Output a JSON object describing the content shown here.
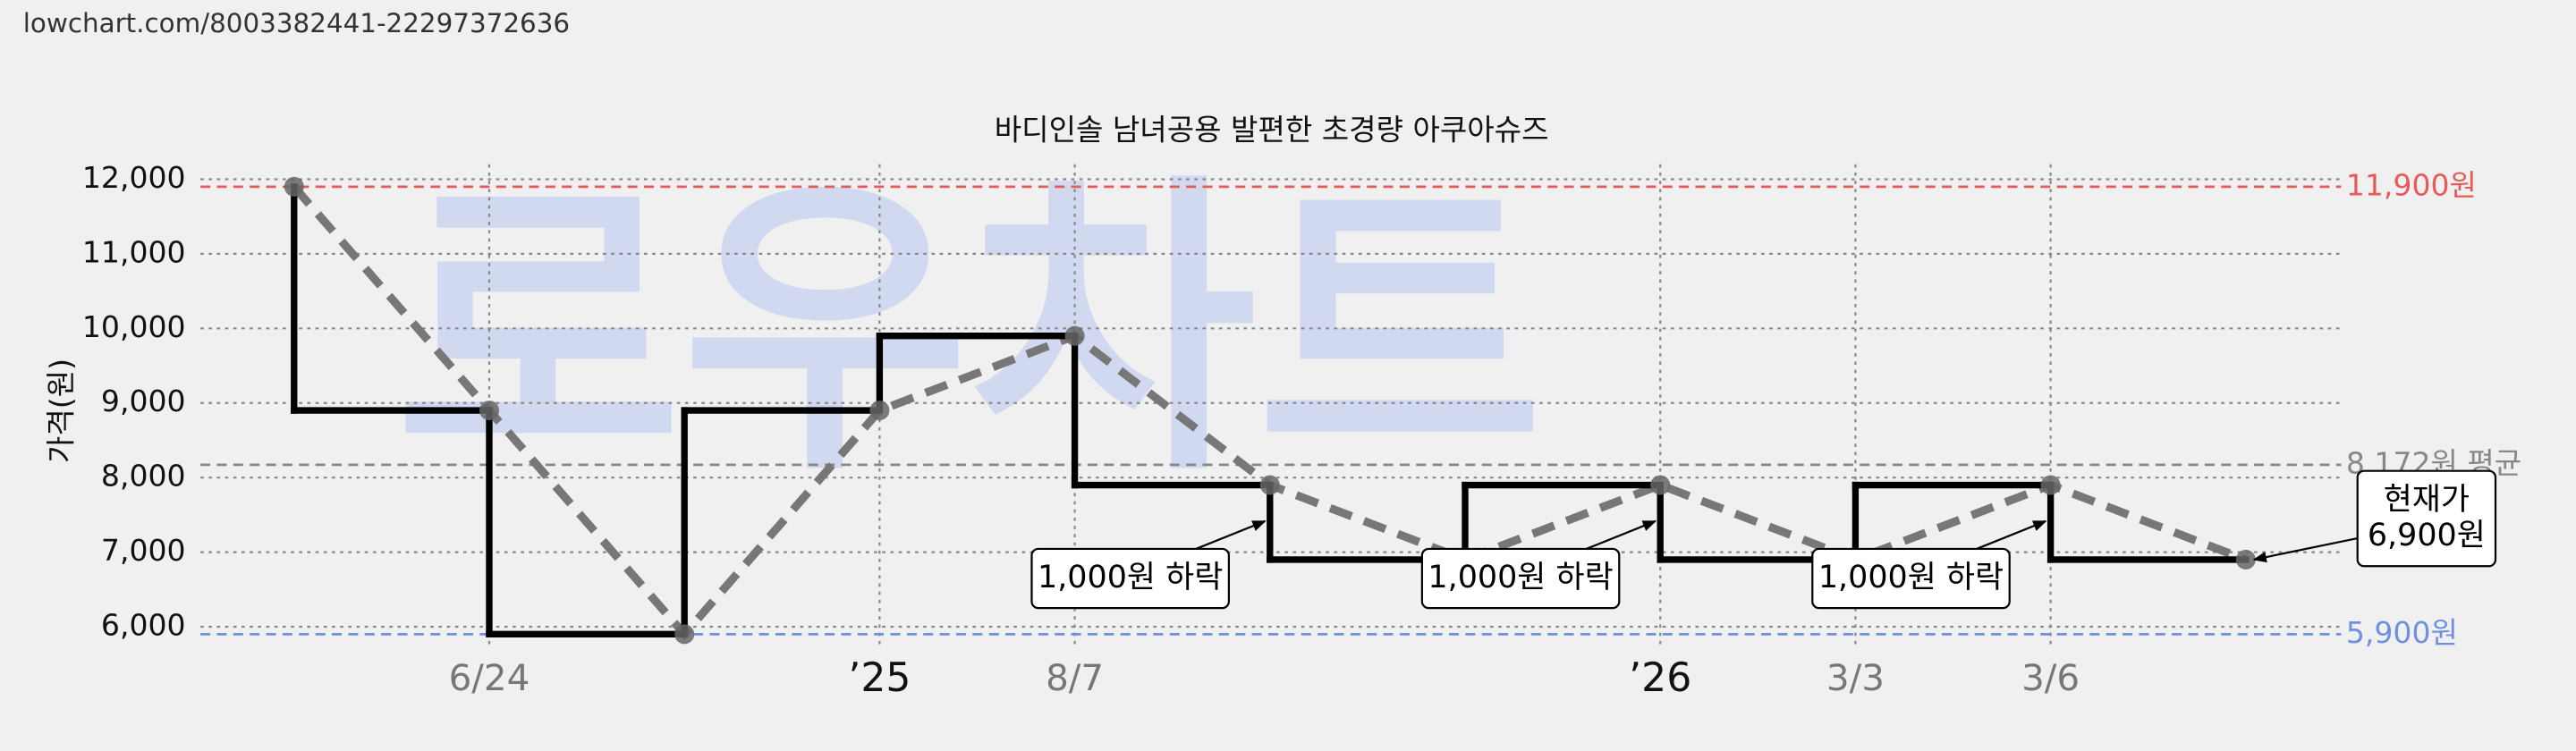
{
  "url": "lowchart.com/8003382441-22297372636",
  "chart_data": {
    "type": "step",
    "title": "바디인솔 남녀공용 발편한 초경량 아쿠아슈즈",
    "watermark": "로우차트",
    "y_label": "가격(원)",
    "categories": [
      null,
      "6/24",
      null,
      "’25",
      "8/7",
      null,
      null,
      "’26",
      "3/3",
      "3/6",
      null
    ],
    "series": [
      {
        "name": "가격",
        "color": "#000000",
        "values": [
          11900,
          8900,
          5900,
          8900,
          9900,
          7900,
          6900,
          7900,
          6900,
          7900,
          6900
        ]
      }
    ],
    "ylim": [
      5700,
      12200
    ],
    "yticks": [
      {
        "value": 6000,
        "label": "6,000"
      },
      {
        "value": 7000,
        "label": "7,000"
      },
      {
        "value": 8000,
        "label": "8,000"
      },
      {
        "value": 9000,
        "label": "9,000"
      },
      {
        "value": 10000,
        "label": "10,000"
      },
      {
        "value": 11000,
        "label": "11,000"
      },
      {
        "value": 12000,
        "label": "12,000"
      }
    ],
    "grid": true,
    "ref_lines": [
      {
        "value": 11900,
        "label": "11,900원",
        "color": "#e85a5a"
      },
      {
        "value": 5900,
        "label": "5,900원",
        "color": "#6f8fe0"
      },
      {
        "value": 8172,
        "label": "8,172원 평균",
        "color": "#888888"
      }
    ],
    "annotations": [
      {
        "lines": [
          "1,000원 하락"
        ],
        "point": 5
      },
      {
        "lines": [
          "1,000원 하락"
        ],
        "point": 7
      },
      {
        "lines": [
          "1,000원 하락"
        ],
        "point": 9
      },
      {
        "lines": [
          "현재가",
          "6,900원"
        ],
        "point": 10
      }
    ]
  }
}
